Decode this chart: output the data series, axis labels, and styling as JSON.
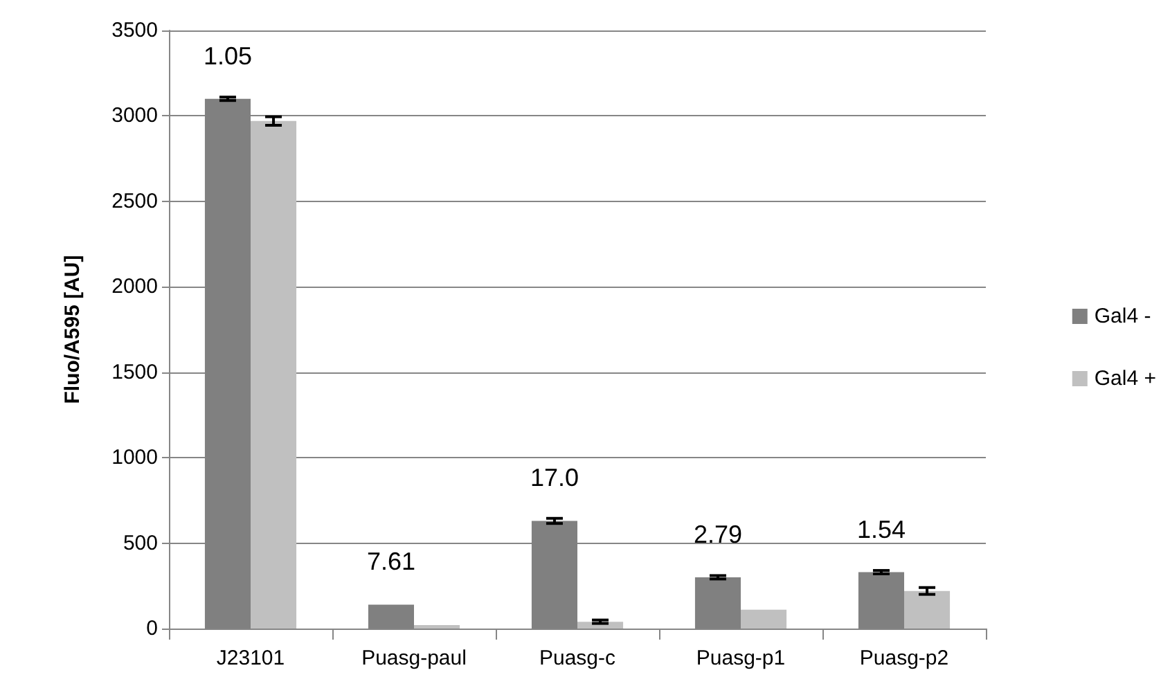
{
  "chart_data": {
    "type": "bar",
    "ylabel": "Fluo/A595 [AU]",
    "categories": [
      "J23101",
      "Puasg-paul",
      "Puasg-c",
      "Puasg-p1",
      "Puasg-p2"
    ],
    "series": [
      {
        "name": "Gal4 -",
        "color": "#808080",
        "values": [
          3100,
          140,
          630,
          300,
          330
        ],
        "errors": [
          10,
          null,
          15,
          10,
          10
        ]
      },
      {
        "name": "Gal4 +",
        "color": "#c0c0c0",
        "values": [
          2970,
          20,
          40,
          110,
          220
        ],
        "errors": [
          25,
          null,
          10,
          null,
          20
        ]
      }
    ],
    "annotations": [
      {
        "text": "1.05",
        "x": "J23101",
        "y": 3100
      },
      {
        "text": "7.61",
        "x": "Puasg-paul",
        "y": 140
      },
      {
        "text": "17.0",
        "x": "Puasg-c",
        "y": 630
      },
      {
        "text": "2.79",
        "x": "Puasg-p1",
        "y": 300
      },
      {
        "text": "1.54",
        "x": "Puasg-p2",
        "y": 330
      }
    ],
    "ylim": [
      0,
      3500
    ],
    "yticks": [
      0,
      500,
      1000,
      1500,
      2000,
      2500,
      3000,
      3500
    ],
    "grid": "y",
    "legend": "right"
  }
}
